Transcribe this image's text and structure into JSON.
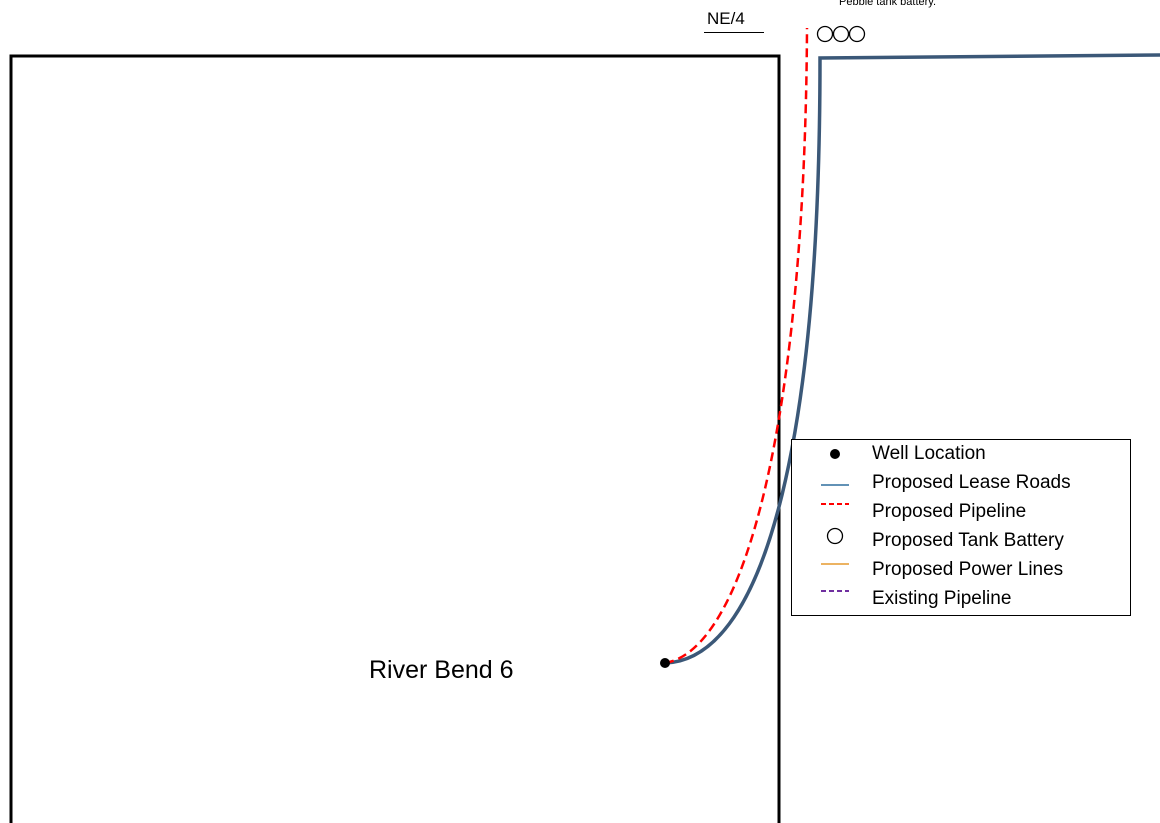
{
  "map": {
    "quarter_label": "NE/4",
    "battery_note": "Pebble tank battery.",
    "well_name": "River Bend 6"
  },
  "legend": {
    "items": [
      {
        "label": "Well Location",
        "icon": "filled-dot-icon",
        "color": "#000000"
      },
      {
        "label": "Proposed Lease Roads",
        "icon": "road-line-icon",
        "color": "#2e6f9e"
      },
      {
        "label": "Proposed Pipeline",
        "icon": "dashed-pipeline-icon",
        "color": "#ff0000"
      },
      {
        "label": "Proposed Tank Battery",
        "icon": "tank-circle-icon",
        "color": "#000000"
      },
      {
        "label": "Proposed Power Lines",
        "icon": "power-line-icon",
        "color": "#e69a2e"
      },
      {
        "label": "Existing Pipeline",
        "icon": "dashed-existing-pipeline-icon",
        "color": "#7030a0"
      }
    ]
  },
  "colors": {
    "road": "#3b5878",
    "pipeline": "#ff0000",
    "boundary": "#000000"
  }
}
